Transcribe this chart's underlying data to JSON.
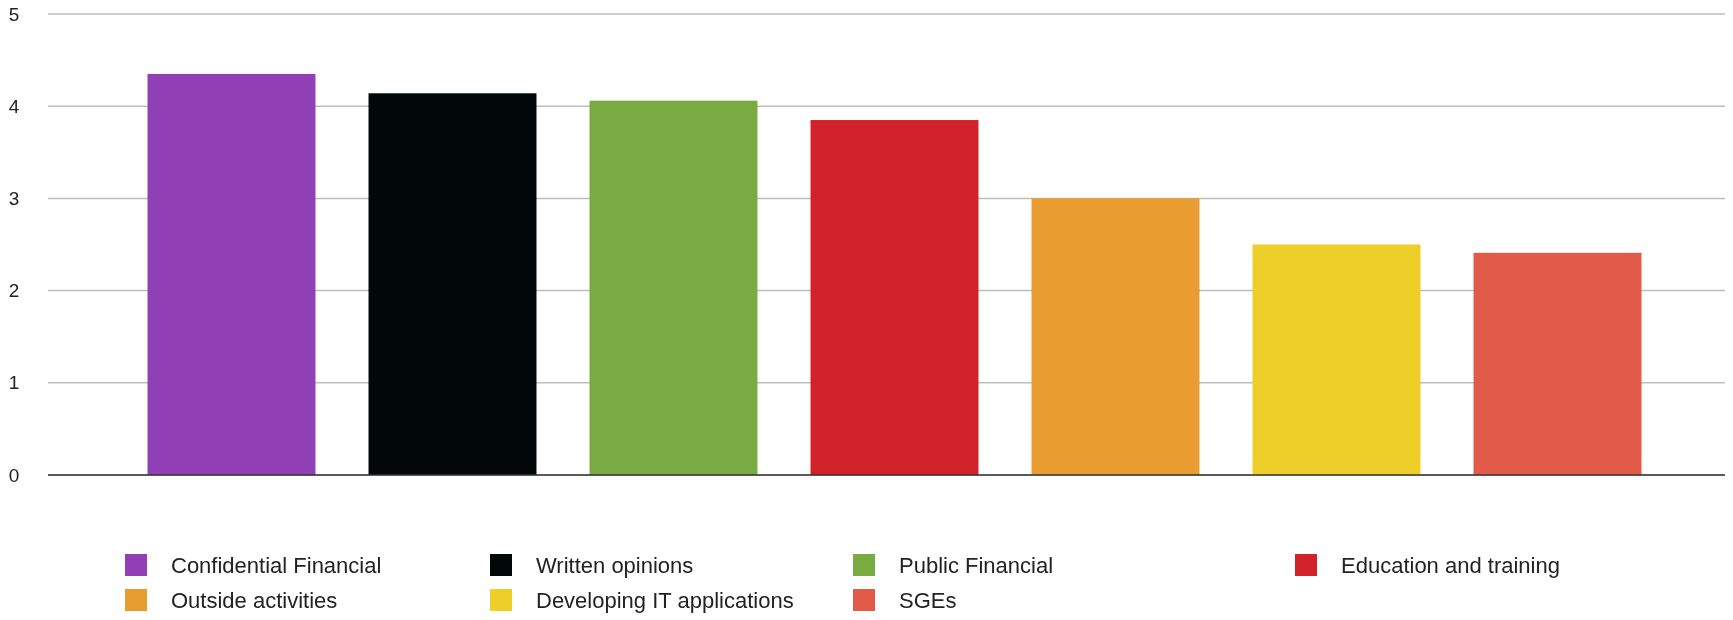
{
  "chart_data": {
    "type": "bar",
    "categories": [
      null
    ],
    "series": [
      {
        "name": "Confidential Financial",
        "color": "#9040b4",
        "values": [
          4.35
        ]
      },
      {
        "name": "Written opinions",
        "color": "#020808",
        "values": [
          4.14
        ]
      },
      {
        "name": "Public Financial",
        "color": "#7aab42",
        "values": [
          4.06
        ]
      },
      {
        "name": "Education and training",
        "color": "#d2232a",
        "values": [
          3.85
        ]
      },
      {
        "name": "Outside activities",
        "color": "#e99c30",
        "values": [
          3.0
        ]
      },
      {
        "name": "Developing IT applications",
        "color": "#eecf2a",
        "values": [
          2.5
        ]
      },
      {
        "name": "SGEs",
        "color": "#e25a48",
        "values": [
          2.41
        ]
      }
    ],
    "ylim": [
      0,
      5
    ],
    "yticks": [
      0,
      1,
      2,
      3,
      4,
      5
    ],
    "grid": "y",
    "legend": "bottom"
  }
}
